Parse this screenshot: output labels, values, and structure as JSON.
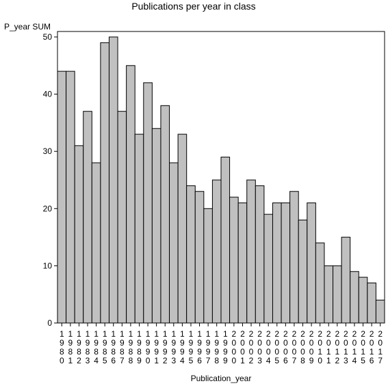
{
  "chart_data": {
    "type": "bar",
    "title": "Publications per year in class",
    "ylabel": "P_year SUM",
    "xlabel": "Publication_year",
    "ylim": [
      0,
      50
    ],
    "yticks": [
      0,
      10,
      20,
      30,
      40,
      50
    ],
    "grid": false,
    "categories": [
      "1980",
      "1981",
      "1982",
      "1983",
      "1984",
      "1985",
      "1986",
      "1987",
      "1988",
      "1989",
      "1990",
      "1991",
      "1992",
      "1993",
      "1994",
      "1995",
      "1996",
      "1997",
      "1998",
      "1999",
      "2000",
      "2001",
      "2002",
      "2003",
      "2004",
      "2005",
      "2006",
      "2007",
      "2008",
      "2009",
      "2010",
      "2011",
      "2012",
      "2013",
      "2014",
      "2015",
      "2016",
      "2017"
    ],
    "values": [
      44,
      44,
      31,
      37,
      28,
      49,
      50,
      37,
      45,
      33,
      42,
      34,
      38,
      28,
      33,
      24,
      23,
      20,
      25,
      29,
      22,
      21,
      25,
      24,
      19,
      21,
      21,
      23,
      18,
      21,
      14,
      10,
      10,
      15,
      9,
      8,
      7,
      4
    ],
    "bar_color": "#c0c0c0",
    "bar_edge_color": "#000000"
  }
}
